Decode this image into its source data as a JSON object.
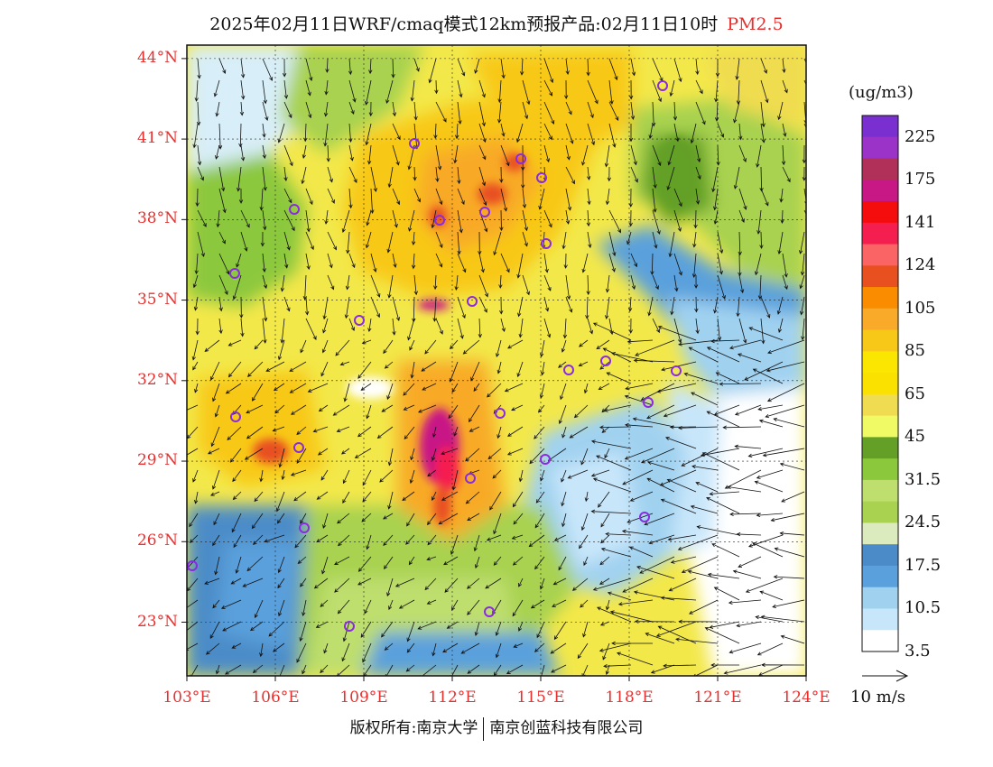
{
  "title": {
    "main": "2025年02月11日WRF/cmaq模式12km预报产品:02月11日10时",
    "variable": "PM2.5"
  },
  "map": {
    "lat_labels": [
      "44°N",
      "41°N",
      "38°N",
      "35°N",
      "32°N",
      "29°N",
      "26°N",
      "23°N"
    ],
    "lon_labels": [
      "103°E",
      "106°E",
      "109°E",
      "112°E",
      "115°E",
      "118°E",
      "121°E",
      "124°E"
    ],
    "lat_range": [
      21,
      44.5
    ],
    "lon_range": [
      103,
      124
    ]
  },
  "legend": {
    "units": "(ug/m3)",
    "labels": [
      "225",
      "175",
      "141",
      "124",
      "105",
      "85",
      "65",
      "45",
      "31.5",
      "24.5",
      "17.5",
      "10.5",
      "3.5"
    ],
    "colors_top_to_bottom": [
      "#7a2fd0",
      "#9b33c9",
      "#b0305a",
      "#c81886",
      "#f50c0c",
      "#f51f4f",
      "#fa6464",
      "#e85020",
      "#fa8c00",
      "#f8aa28",
      "#f8c818",
      "#fae600",
      "#fae100",
      "#f0dc50",
      "#f0fa64",
      "#64a028",
      "#8cc83c",
      "#bede6e",
      "#a8d250",
      "#dcebbe",
      "#4b8cc8",
      "#5aa0dc",
      "#a0d2f0",
      "#c8e6fa",
      "#ffffff"
    ]
  },
  "wind": {
    "reference": "10 m/s"
  },
  "footer": {
    "copyright": "版权所有:南京大学",
    "company": "南京创蓝科技有限公司"
  },
  "colors": {
    "label_red": "#e8302f",
    "city_marker": "#8a2be2"
  }
}
